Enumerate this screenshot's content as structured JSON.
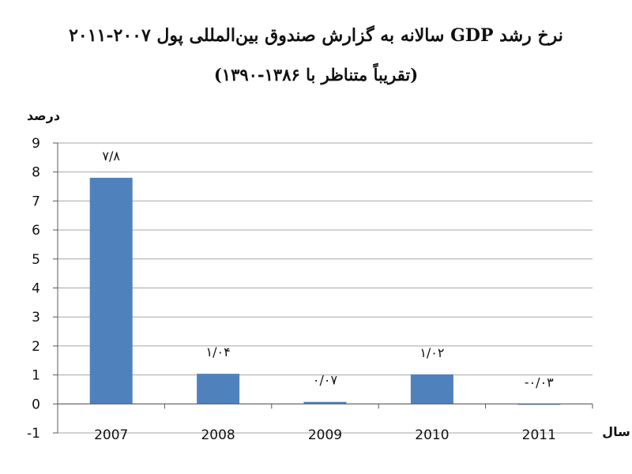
{
  "chart_data": {
    "type": "bar",
    "title": "نرخ رشد GDP سالانه به گزارش صندوق بین‌المللی پول ۲۰۰۷-۲۰۱۱",
    "subtitle": "(تقریباً متناظر با ۱۳۸۶-۱۳۹۰)",
    "ylabel": "درصد",
    "xlabel": "سال",
    "categories": [
      "2007",
      "2008",
      "2009",
      "2010",
      "2011"
    ],
    "values": [
      7.8,
      1.04,
      0.07,
      1.02,
      -0.03
    ],
    "data_labels": [
      "۷/۸",
      "۱/۰۴",
      "۰/۰۷",
      "۱/۰۲",
      "-۰/۰۳"
    ],
    "ylim": [
      -1,
      9
    ],
    "yticks": [
      "-1",
      "0",
      "1",
      "2",
      "3",
      "4",
      "5",
      "6",
      "7",
      "8",
      "9"
    ],
    "grid": true,
    "bar_color": "#4f81bd",
    "grid_color": "#a6a6a6"
  }
}
